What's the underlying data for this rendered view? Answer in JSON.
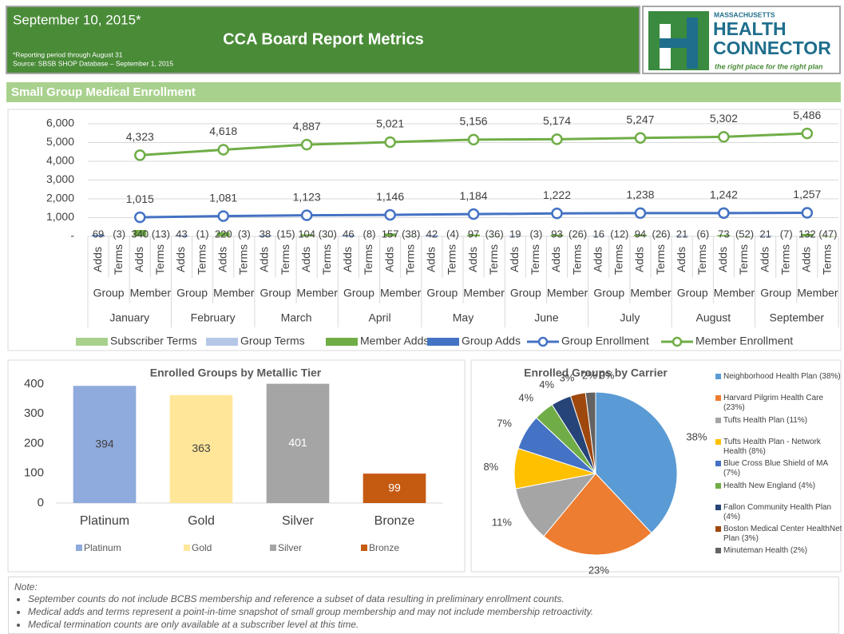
{
  "header": {
    "date": "September 10, 2015*",
    "title": "CCA Board Report Metrics",
    "footnote": "*Reporting period through August 31",
    "source": "Source: SBSB SHOP Database – September 1, 2015"
  },
  "logo": {
    "line1": "MASSACHUSETTS",
    "line2": "HEALTH",
    "line3": "CONNECTOR",
    "tagline": "the right place for the right plan"
  },
  "section_title": "Small Group Medical Enrollment",
  "chart_data": [
    {
      "type": "combo",
      "categories": [
        "January",
        "February",
        "March",
        "April",
        "May",
        "June",
        "July",
        "August",
        "September"
      ],
      "groups": [
        "Group",
        "Member"
      ],
      "measures": [
        "Adds",
        "Terms"
      ],
      "ylim": [
        0,
        6000
      ],
      "yticks": [
        {
          "value": 0,
          "label": "-"
        },
        {
          "value": 1000,
          "label": "1,000"
        },
        {
          "value": 2000,
          "label": "2,000"
        },
        {
          "value": 3000,
          "label": "3,000"
        },
        {
          "value": 4000,
          "label": "4,000"
        },
        {
          "value": 5000,
          "label": "5,000"
        },
        {
          "value": 6000,
          "label": "6,000"
        }
      ],
      "grid": true,
      "series": [
        {
          "name": "Subscriber Terms",
          "type": "bar",
          "color": "#a9d18e",
          "values": [
            -13,
            -3,
            -30,
            -38,
            -36,
            -26,
            -26,
            -52,
            -47
          ],
          "value_labels": [
            "(13)",
            "(3)",
            "(30)",
            "(38)",
            "(36)",
            "(26)",
            "(26)",
            "(52)",
            "(47)"
          ]
        },
        {
          "name": "Group Terms",
          "type": "bar",
          "color": "#b4c7e7",
          "values": [
            -3,
            -1,
            -15,
            -8,
            -4,
            -3,
            -12,
            -6,
            -7
          ],
          "value_labels": [
            "(3)",
            "(1)",
            "(15)",
            "(8)",
            "(4)",
            "(3)",
            "(12)",
            "(6)",
            "(7)"
          ]
        },
        {
          "name": "Member Adds",
          "type": "bar",
          "color": "#70ad47",
          "values": [
            340,
            220,
            104,
            157,
            97,
            93,
            94,
            73,
            132
          ]
        },
        {
          "name": "Group Adds",
          "type": "bar",
          "color": "#4472c4",
          "values": [
            69,
            43,
            38,
            46,
            42,
            19,
            16,
            21,
            21
          ]
        },
        {
          "name": "Group Enrollment",
          "type": "line",
          "color": "#4472c4",
          "values": [
            1015,
            1081,
            1123,
            1146,
            1184,
            1222,
            1238,
            1242,
            1257
          ],
          "value_labels": [
            "1,015",
            "1,081",
            "1,123",
            "1,146",
            "1,184",
            "1,222",
            "1,238",
            "1,242",
            "1,257"
          ]
        },
        {
          "name": "Member Enrollment",
          "type": "line",
          "color": "#70ad47",
          "values": [
            4323,
            4618,
            4887,
            5021,
            5156,
            5174,
            5247,
            5302,
            5486
          ],
          "value_labels": [
            "4,323",
            "4,618",
            "4,887",
            "5,021",
            "5,156",
            "5,174",
            "5,247",
            "5,302",
            "5,486"
          ]
        }
      ]
    },
    {
      "type": "bar",
      "title": "Enrolled Groups by Metallic Tier",
      "categories": [
        "Platinum",
        "Gold",
        "Silver",
        "Bronze"
      ],
      "values": [
        394,
        363,
        401,
        99
      ],
      "colors": [
        "#8faadc",
        "#ffe699",
        "#a5a5a5",
        "#c55a11"
      ],
      "ylim": [
        0,
        400
      ],
      "yticks": [
        0,
        100,
        200,
        300,
        400
      ]
    },
    {
      "type": "pie",
      "title": "Enrolled Groups by Carrier",
      "categories": [
        "Neighborhood Health Plan (38%)",
        "Harvard Pilgrim Health Care (23%)",
        "Tufts Health Plan (11%)",
        "Tufts Health Plan - Network Health (8%)",
        "Blue Cross Blue Shield of MA (7%)",
        "Health New England (4%)",
        "Fallon Community Health Plan (4%)",
        "Boston Medical Center HealthNet Plan (3%)",
        "Minuteman Health (2%)",
        null
      ],
      "values": [
        38,
        23,
        11,
        8,
        7,
        4,
        4,
        3,
        2,
        0
      ],
      "value_labels": [
        "38%",
        "23%",
        "11%",
        "8%",
        "7%",
        "4%",
        "4%",
        "3%",
        "2%",
        "0%"
      ],
      "colors": [
        "#5b9bd5",
        "#ed7d31",
        "#a5a5a5",
        "#ffc000",
        "#4472c4",
        "#70ad47",
        "#264478",
        "#9e480e",
        "#636363",
        "#997300"
      ]
    }
  ],
  "notes": {
    "heading": "Note:",
    "items": [
      "September counts do not include BCBS membership and reference a subset of data resulting in preliminary enrollment counts.",
      "Medical adds and terms represent a point-in-time snapshot of small group membership and may not include membership retroactivity.",
      "Medical termination counts are only available at a subscriber level at this time."
    ]
  }
}
